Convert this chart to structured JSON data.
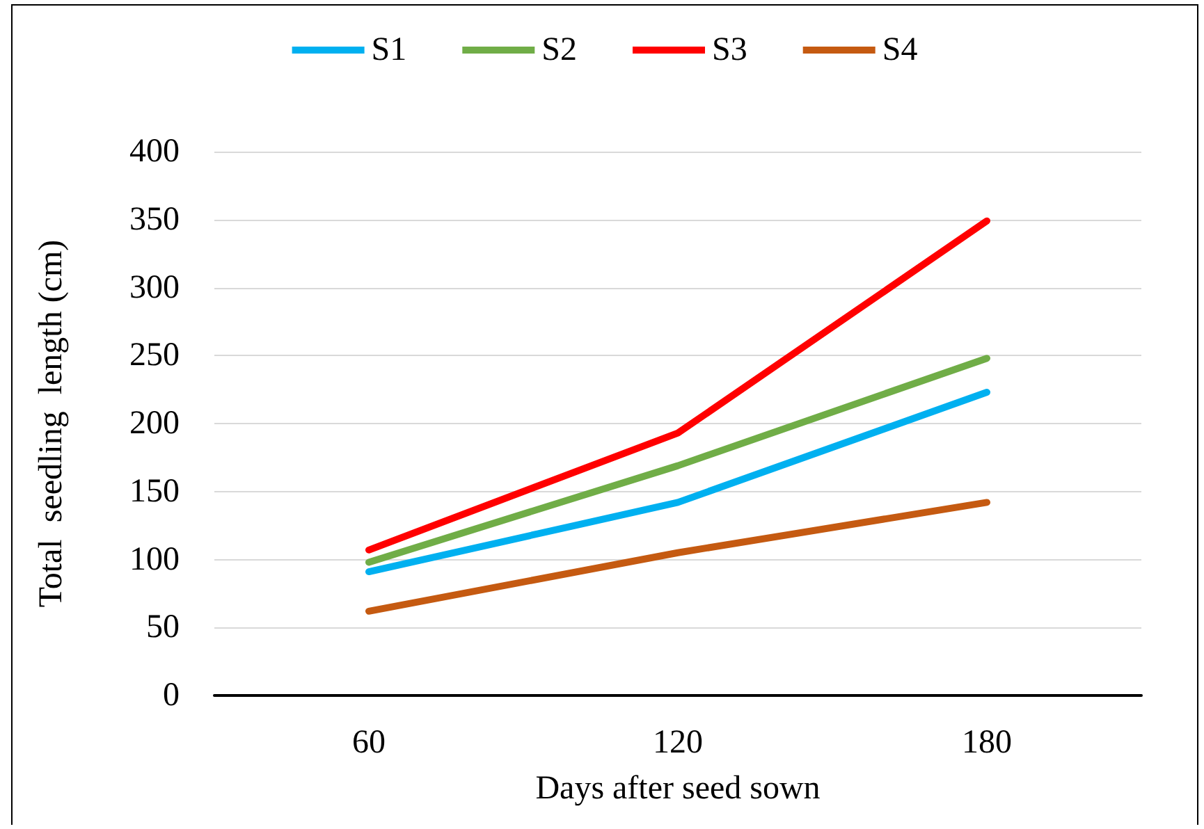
{
  "chart_data": {
    "type": "line",
    "xlabel": "Days after seed sown",
    "ylabel": "Total  seedling  length (cm)",
    "categories": [
      "60",
      "120",
      "180"
    ],
    "series": [
      {
        "name": "S1",
        "color": "#00b0f0",
        "values": [
          91,
          142,
          223
        ]
      },
      {
        "name": "S2",
        "color": "#70ad47",
        "values": [
          98,
          169,
          248
        ]
      },
      {
        "name": "S3",
        "color": "#ff0000",
        "values": [
          107,
          193,
          349
        ]
      },
      {
        "name": "S4",
        "color": "#c55a11",
        "values": [
          62,
          105,
          142
        ]
      }
    ],
    "ylim": [
      0,
      400
    ],
    "yticks": [
      0,
      50,
      100,
      150,
      200,
      250,
      300,
      350,
      400
    ],
    "grid": "y",
    "legend": "top",
    "marker": "none",
    "line_style": "solid"
  }
}
